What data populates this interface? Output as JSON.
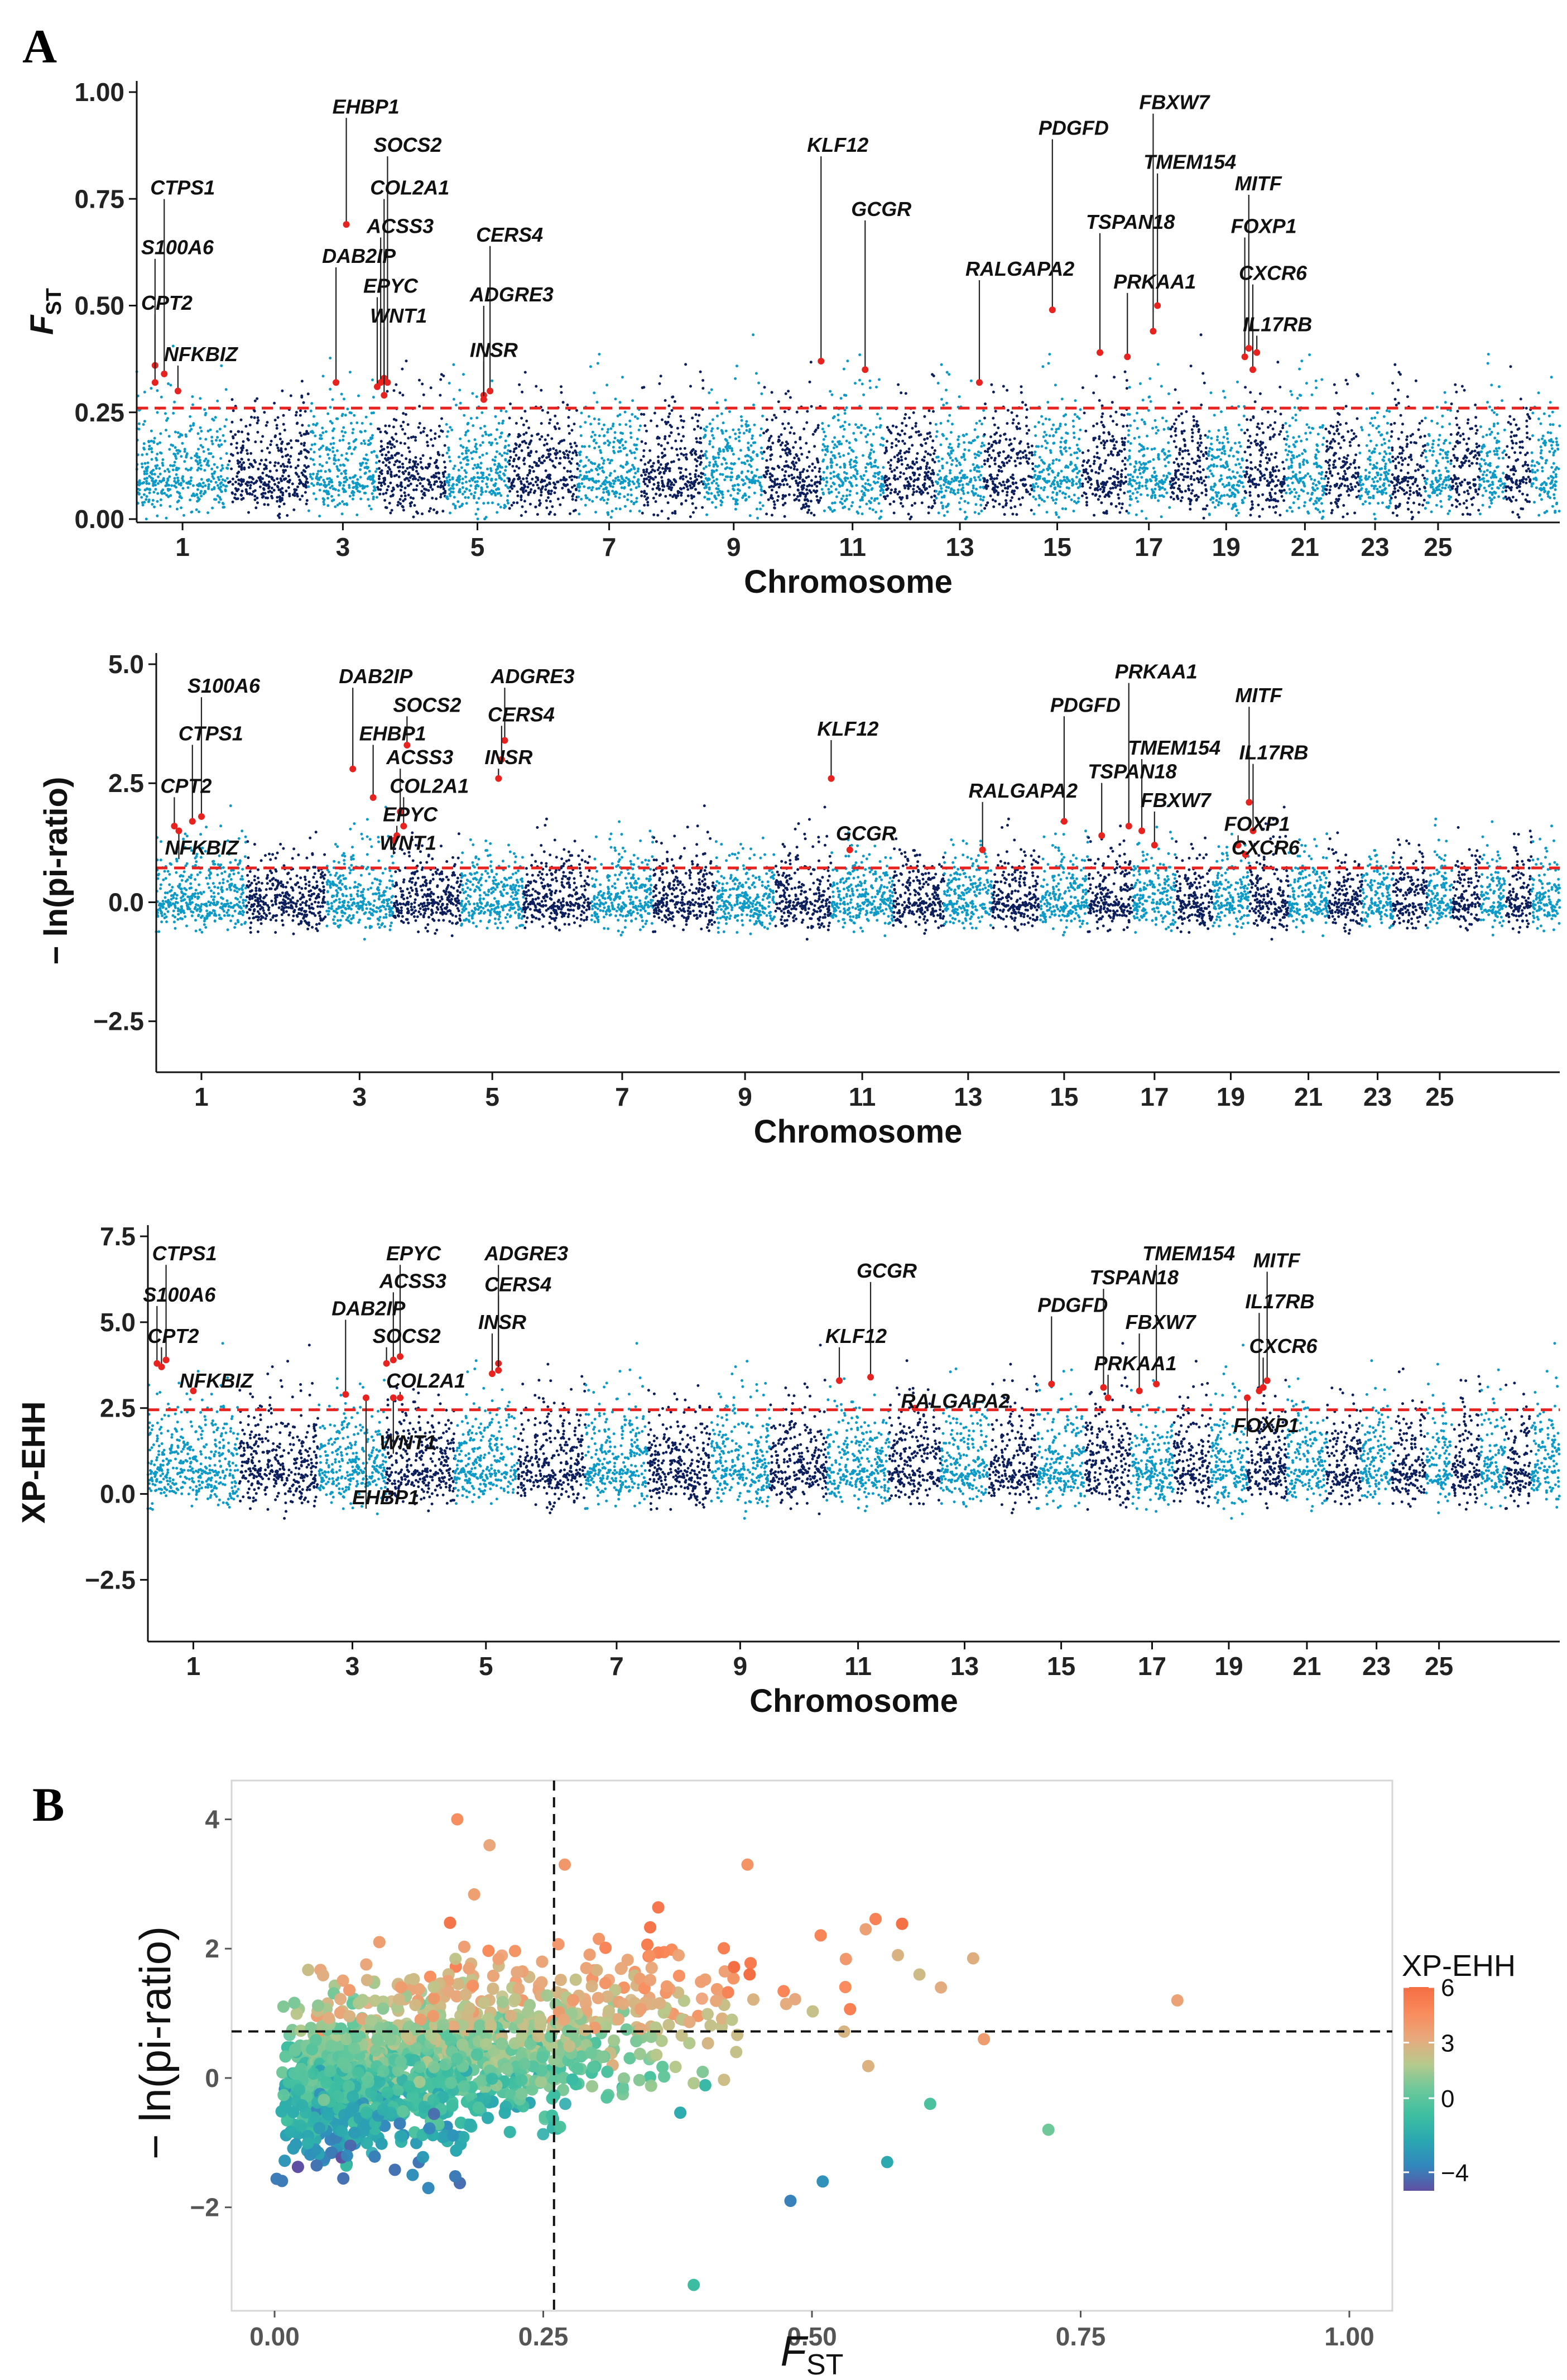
{
  "figure": {
    "panel_a": "A",
    "panel_b": "B"
  },
  "chart_data": [
    {
      "type": "scatter",
      "subtype": "manhattan",
      "id": "fst",
      "ylabel": "F",
      "ylabel_sub": "ST",
      "xlabel": "Chromosome",
      "ylim": [
        0,
        1.0
      ],
      "yticks": [
        0.0,
        0.25,
        0.5,
        0.75,
        1.0
      ],
      "ytick_labels": [
        "0.00",
        "0.25",
        "0.50",
        "0.75",
        "1.00"
      ],
      "threshold": 0.26,
      "baseline": 0.1,
      "noise": 0.09,
      "floor": 0.0,
      "x_tick_labels": [
        "1",
        "3",
        "5",
        "7",
        "9",
        "11",
        "13",
        "15",
        "17",
        "19",
        "21",
        "23",
        "25"
      ],
      "chromosome_colors": [
        "#0e9ac6",
        "#0c1f5c"
      ],
      "threshold_color": "#e8231f",
      "highlight_color": "#e8231f",
      "genes": [
        {
          "name": "CTPS1",
          "x": 0.3,
          "y": 0.34,
          "label_y": 0.76
        },
        {
          "name": "S100A6",
          "x": 0.2,
          "y": 0.36,
          "label_y": 0.62
        },
        {
          "name": "CPT2",
          "x": 0.2,
          "y": 0.32,
          "label_y": 0.49
        },
        {
          "name": "NFKBIZ",
          "x": 0.45,
          "y": 0.3,
          "label_y": 0.37
        },
        {
          "name": "EHBP1",
          "x": 2.55,
          "y": 0.69,
          "label_y": 0.95
        },
        {
          "name": "SOCS2",
          "x": 3.15,
          "y": 0.32,
          "label_y": 0.86
        },
        {
          "name": "COL2A1",
          "x": 3.1,
          "y": 0.33,
          "label_y": 0.76
        },
        {
          "name": "ACSS3",
          "x": 3.05,
          "y": 0.32,
          "label_y": 0.67
        },
        {
          "name": "DAB2IP",
          "x": 2.4,
          "y": 0.32,
          "label_y": 0.6
        },
        {
          "name": "EPYC",
          "x": 3.0,
          "y": 0.31,
          "label_y": 0.53
        },
        {
          "name": "WNT1",
          "x": 3.1,
          "y": 0.29,
          "label_y": 0.46
        },
        {
          "name": "CERS4",
          "x": 4.7,
          "y": 0.3,
          "label_y": 0.65
        },
        {
          "name": "ADGRE3",
          "x": 4.6,
          "y": 0.29,
          "label_y": 0.51
        },
        {
          "name": "INSR",
          "x": 4.6,
          "y": 0.28,
          "label_y": 0.38
        },
        {
          "name": "KLF12",
          "x": 10.0,
          "y": 0.37,
          "label_y": 0.86
        },
        {
          "name": "GCGR",
          "x": 10.7,
          "y": 0.35,
          "label_y": 0.71
        },
        {
          "name": "RALGAPA2",
          "x": 12.9,
          "y": 0.32,
          "label_y": 0.57
        },
        {
          "name": "PDGFD",
          "x": 14.4,
          "y": 0.49,
          "label_y": 0.9
        },
        {
          "name": "FBXW7",
          "x": 16.6,
          "y": 0.44,
          "label_y": 0.96
        },
        {
          "name": "TMEM154",
          "x": 16.7,
          "y": 0.5,
          "label_y": 0.82
        },
        {
          "name": "TSPAN18",
          "x": 15.4,
          "y": 0.39,
          "label_y": 0.68
        },
        {
          "name": "PRKAA1",
          "x": 16.0,
          "y": 0.38,
          "label_y": 0.54
        },
        {
          "name": "MITF",
          "x": 19.1,
          "y": 0.4,
          "label_y": 0.77
        },
        {
          "name": "FOXP1",
          "x": 19.0,
          "y": 0.38,
          "label_y": 0.67
        },
        {
          "name": "CXCR6",
          "x": 19.2,
          "y": 0.35,
          "label_y": 0.56
        },
        {
          "name": "IL17RB",
          "x": 19.3,
          "y": 0.39,
          "label_y": 0.44
        }
      ]
    },
    {
      "type": "scatter",
      "subtype": "manhattan",
      "id": "pi",
      "ylabel": "− ln(pi-ratio)",
      "xlabel": "Chromosome",
      "ylim": [
        -3.5,
        5.0
      ],
      "yticks": [
        -2.5,
        0.0,
        2.5,
        5.0
      ],
      "ytick_labels": [
        "−2.5",
        "0.0",
        "2.5",
        "5.0"
      ],
      "threshold": 0.72,
      "baseline": 0.0,
      "noise": 0.55,
      "floor": -2.4,
      "x_tick_labels": [
        "1",
        "3",
        "5",
        "7",
        "9",
        "11",
        "13",
        "15",
        "17",
        "19",
        "21",
        "23",
        "25"
      ],
      "chromosome_colors": [
        "#0e9ac6",
        "#0c1f5c"
      ],
      "threshold_color": "#e8231f",
      "highlight_color": "#e8231f",
      "genes": [
        {
          "name": "S100A6",
          "x": 0.5,
          "y": 1.8,
          "label_y": 4.4
        },
        {
          "name": "CTPS1",
          "x": 0.4,
          "y": 1.7,
          "label_y": 3.4
        },
        {
          "name": "CPT2",
          "x": 0.2,
          "y": 1.6,
          "label_y": 2.3
        },
        {
          "name": "NFKBIZ",
          "x": 0.25,
          "y": 1.5,
          "label_y": 1.0
        },
        {
          "name": "DAB2IP",
          "x": 2.4,
          "y": 2.8,
          "label_y": 4.6
        },
        {
          "name": "SOCS2",
          "x": 3.2,
          "y": 3.3,
          "label_y": 4.0
        },
        {
          "name": "EHBP1",
          "x": 2.7,
          "y": 2.2,
          "label_y": 3.4
        },
        {
          "name": "ACSS3",
          "x": 3.1,
          "y": 1.9,
          "label_y": 2.9
        },
        {
          "name": "COL2A1",
          "x": 3.15,
          "y": 1.6,
          "label_y": 2.3
        },
        {
          "name": "EPYC",
          "x": 3.05,
          "y": 1.4,
          "label_y": 1.7
        },
        {
          "name": "WNT1",
          "x": 3.0,
          "y": 1.3,
          "label_y": 1.1
        },
        {
          "name": "ADGRE3",
          "x": 4.7,
          "y": 3.4,
          "label_y": 4.6
        },
        {
          "name": "CERS4",
          "x": 4.65,
          "y": 3.0,
          "label_y": 3.8
        },
        {
          "name": "INSR",
          "x": 4.6,
          "y": 2.6,
          "label_y": 2.9
        },
        {
          "name": "KLF12",
          "x": 10.0,
          "y": 2.6,
          "label_y": 3.5
        },
        {
          "name": "GCGR",
          "x": 10.3,
          "y": 1.1,
          "label_y": 1.3
        },
        {
          "name": "RALGAPA2",
          "x": 12.8,
          "y": 1.1,
          "label_y": 2.2
        },
        {
          "name": "PRKAA1",
          "x": 15.9,
          "y": 1.6,
          "label_y": 4.7
        },
        {
          "name": "PDGFD",
          "x": 14.5,
          "y": 1.7,
          "label_y": 4.0
        },
        {
          "name": "TMEM154",
          "x": 16.2,
          "y": 1.5,
          "label_y": 3.1
        },
        {
          "name": "TSPAN18",
          "x": 15.3,
          "y": 1.4,
          "label_y": 2.6
        },
        {
          "name": "FBXW7",
          "x": 16.5,
          "y": 1.2,
          "label_y": 2.0
        },
        {
          "name": "MITF",
          "x": 19.0,
          "y": 2.1,
          "label_y": 4.2
        },
        {
          "name": "IL17RB",
          "x": 19.1,
          "y": 1.5,
          "label_y": 3.0
        },
        {
          "name": "FOXP1",
          "x": 18.7,
          "y": 1.2,
          "label_y": 1.5
        },
        {
          "name": "CXCR6",
          "x": 18.9,
          "y": 1.0,
          "label_y": 1.0
        }
      ]
    },
    {
      "type": "scatter",
      "subtype": "manhattan",
      "id": "xpehh",
      "ylabel": "XP-EHH",
      "xlabel": "Chromosome",
      "ylim": [
        -4.2,
        7.5
      ],
      "yticks": [
        -2.5,
        0.0,
        2.5,
        5.0,
        7.5
      ],
      "ytick_labels": [
        "−2.5",
        "0.0",
        "2.5",
        "5.0",
        "7.5"
      ],
      "threshold": 2.45,
      "baseline": 0.7,
      "noise": 1.0,
      "floor": -4.0,
      "x_tick_labels": [
        "1",
        "3",
        "5",
        "7",
        "9",
        "11",
        "13",
        "15",
        "17",
        "19",
        "21",
        "23",
        "25"
      ],
      "chromosome_colors": [
        "#0e9ac6",
        "#0c1f5c"
      ],
      "threshold_color": "#e8231f",
      "highlight_color": "#e8231f",
      "genes": [
        {
          "name": "CTPS1",
          "x": 0.2,
          "y": 3.9,
          "label_y": 6.8
        },
        {
          "name": "S100A6",
          "x": 0.1,
          "y": 3.8,
          "label_y": 5.6
        },
        {
          "name": "CPT2",
          "x": 0.15,
          "y": 3.7,
          "label_y": 4.4
        },
        {
          "name": "NFKBIZ",
          "x": 0.5,
          "y": 3.0,
          "label_y": 3.1
        },
        {
          "name": "EPYC",
          "x": 3.2,
          "y": 4.0,
          "label_y": 6.8
        },
        {
          "name": "ACSS3",
          "x": 3.1,
          "y": 3.9,
          "label_y": 6.0
        },
        {
          "name": "DAB2IP",
          "x": 2.4,
          "y": 2.9,
          "label_y": 5.2
        },
        {
          "name": "SOCS2",
          "x": 3.0,
          "y": 3.8,
          "label_y": 4.4
        },
        {
          "name": "COL2A1",
          "x": 3.2,
          "y": 2.8,
          "label_y": 3.1
        },
        {
          "name": "WNT1",
          "x": 3.1,
          "y": 2.8,
          "label_y": 1.3
        },
        {
          "name": "EHBP1",
          "x": 2.7,
          "y": 2.8,
          "label_y": -0.3
        },
        {
          "name": "ADGRE3",
          "x": 4.7,
          "y": 3.8,
          "label_y": 6.8
        },
        {
          "name": "CERS4",
          "x": 4.7,
          "y": 3.6,
          "label_y": 5.9
        },
        {
          "name": "INSR",
          "x": 4.6,
          "y": 3.5,
          "label_y": 4.8
        },
        {
          "name": "GCGR",
          "x": 10.7,
          "y": 3.4,
          "label_y": 6.3
        },
        {
          "name": "KLF12",
          "x": 10.2,
          "y": 3.3,
          "label_y": 4.4
        },
        {
          "name": "RALGAPA2",
          "x": 11.5,
          "y": 2.5,
          "label_y": 2.5
        },
        {
          "name": "TMEM154",
          "x": 16.6,
          "y": 3.2,
          "label_y": 6.8
        },
        {
          "name": "TSPAN18",
          "x": 15.4,
          "y": 3.1,
          "label_y": 6.1
        },
        {
          "name": "PDGFD",
          "x": 14.3,
          "y": 3.2,
          "label_y": 5.3
        },
        {
          "name": "FBXW7",
          "x": 16.2,
          "y": 3.0,
          "label_y": 4.8
        },
        {
          "name": "PRKAA1",
          "x": 15.5,
          "y": 2.8,
          "label_y": 3.6
        },
        {
          "name": "MITF",
          "x": 19.5,
          "y": 3.3,
          "label_y": 6.6
        },
        {
          "name": "IL17RB",
          "x": 19.3,
          "y": 3.0,
          "label_y": 5.4
        },
        {
          "name": "CXCR6",
          "x": 19.4,
          "y": 3.1,
          "label_y": 4.1
        },
        {
          "name": "FOXP1",
          "x": 19.0,
          "y": 2.8,
          "label_y": 1.8
        }
      ]
    },
    {
      "type": "scatter",
      "id": "joint",
      "xlabel": "F",
      "xlabel_sub": "ST",
      "ylabel": "− ln(pi-ratio)",
      "xlim": [
        -0.04,
        1.04
      ],
      "ylim": [
        -3.6,
        4.6
      ],
      "xticks": [
        0.0,
        0.25,
        0.5,
        0.75,
        1.0
      ],
      "xtick_labels": [
        "0.00",
        "0.25",
        "0.50",
        "0.75",
        "1.00"
      ],
      "yticks": [
        -2,
        0,
        2,
        4
      ],
      "ytick_labels": [
        "−2",
        "0",
        "2",
        "4"
      ],
      "vline": 0.26,
      "hline": 0.72,
      "color_variable": "XP-EHH",
      "colorbar": {
        "title": "XP-EHH",
        "range": [
          -5,
          6
        ],
        "ticks": [
          6,
          3,
          0,
          -4
        ],
        "tick_labels": [
          "6",
          "3",
          "0",
          "−4"
        ]
      },
      "colormap": [
        "#5e4fa2",
        "#3288bd",
        "#2aa8b0",
        "#3ebfa0",
        "#6ec89a",
        "#b8c98c",
        "#e8a87c",
        "#f98b5c",
        "#f46d43"
      ],
      "outliers": [
        {
          "x": 0.17,
          "y": 4.0,
          "c": 4.5
        },
        {
          "x": 0.84,
          "y": 1.2,
          "c": 3.5
        },
        {
          "x": 0.72,
          "y": -0.8,
          "c": 0.5
        },
        {
          "x": 0.65,
          "y": 1.85,
          "c": 3.0
        },
        {
          "x": 0.66,
          "y": 0.6,
          "c": 3.8
        },
        {
          "x": 0.39,
          "y": -3.2,
          "c": -1.0
        },
        {
          "x": 0.44,
          "y": 3.3,
          "c": 4.2
        },
        {
          "x": 0.27,
          "y": 3.3,
          "c": 4.0
        },
        {
          "x": 0.29,
          "y": 1.7,
          "c": 3.4
        },
        {
          "x": 0.58,
          "y": 1.9,
          "c": 2.8
        },
        {
          "x": 0.62,
          "y": 1.4,
          "c": 3.1
        },
        {
          "x": 0.55,
          "y": 2.3,
          "c": 3.6
        },
        {
          "x": 0.61,
          "y": -0.4,
          "c": -0.5
        },
        {
          "x": 0.57,
          "y": -1.3,
          "c": -2.2
        },
        {
          "x": 0.48,
          "y": -1.9,
          "c": -3.8
        },
        {
          "x": 0.51,
          "y": -1.6,
          "c": -3.2
        },
        {
          "x": 0.2,
          "y": 3.6,
          "c": 3.3
        },
        {
          "x": 0.6,
          "y": 1.6,
          "c": 2.5
        }
      ]
    }
  ]
}
